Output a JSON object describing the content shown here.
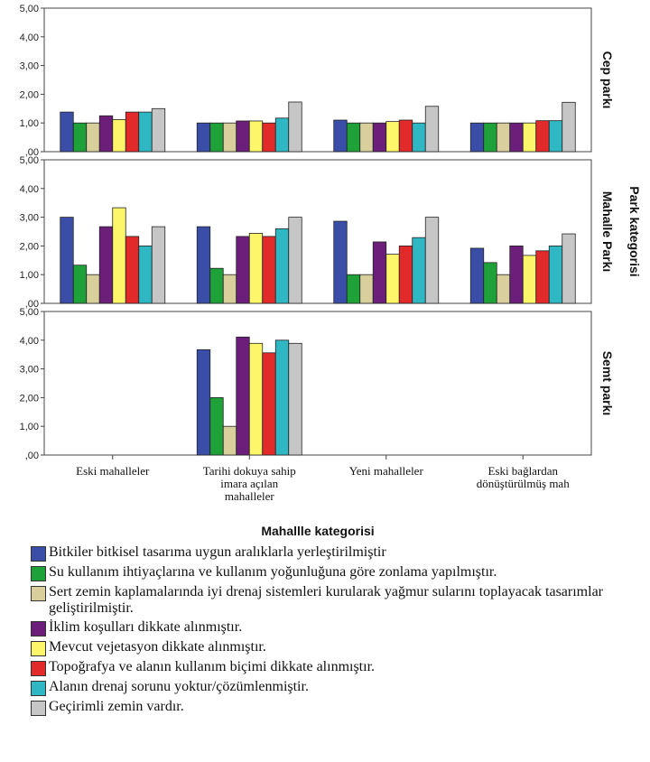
{
  "chart_data": {
    "type": "bar",
    "xlabel": "Mahallle kategorisi",
    "facet_label": "Park kategorisi",
    "categories": [
      [
        "Eski mahalleler"
      ],
      [
        "Tarihi dokuya sahip",
        "imara açılan",
        "mahalleler"
      ],
      [
        "Yeni mahalleler"
      ],
      [
        "Eski bağlardan",
        "dönüştürülmüş mah"
      ]
    ],
    "ylim": [
      0,
      5
    ],
    "yticks": [
      "5,00",
      "4,00",
      "3,00",
      "2,00",
      "1,00",
      ",00"
    ],
    "panels": [
      {
        "name": "Cep parkı",
        "values": [
          [
            1.38,
            1.0,
            1.0,
            1.25,
            1.12,
            1.38,
            1.38,
            1.5
          ],
          [
            1.0,
            1.0,
            1.0,
            1.07,
            1.07,
            1.0,
            1.17,
            1.73
          ],
          [
            1.1,
            1.0,
            1.0,
            1.0,
            1.05,
            1.1,
            1.0,
            1.58
          ],
          [
            1.0,
            1.0,
            1.0,
            1.0,
            1.0,
            1.08,
            1.08,
            1.72
          ]
        ]
      },
      {
        "name": "Mahalle Parkı",
        "values": [
          [
            3.0,
            1.33,
            1.0,
            2.67,
            3.33,
            2.33,
            2.0,
            2.67
          ],
          [
            2.67,
            1.22,
            1.0,
            2.33,
            2.44,
            2.33,
            2.6,
            3.0
          ],
          [
            2.86,
            1.0,
            1.0,
            2.14,
            1.71,
            2.0,
            2.29,
            3.0
          ],
          [
            1.92,
            1.42,
            1.0,
            2.0,
            1.67,
            1.83,
            2.0,
            2.42
          ]
        ]
      },
      {
        "name": "Semt parkı",
        "values": [
          null,
          [
            3.67,
            2.0,
            1.0,
            4.11,
            3.89,
            3.56,
            4.0,
            3.89
          ],
          null,
          null
        ]
      }
    ],
    "series": [
      {
        "name": "Bitkiler bitkisel tasarıma uygun aralıklarla yerleştirilmiştir",
        "color": "#3a4ea8"
      },
      {
        "name": "Su kullanım ihtiyaçlarına ve kullanım yoğunluğuna göre  zonlama yapılmıştır.",
        "color": "#1fa13a"
      },
      {
        "name": "Sert zemin kaplamalarında iyi drenaj sistemleri kurularak yağmur sularını toplayacak tasarımlar geliştirilmiştir.",
        "color": "#d9cf9c"
      },
      {
        "name": "İklim koşulları dikkate alınmıştır.",
        "color": "#6b1f7a"
      },
      {
        "name": "Mevcut vejetasyon dikkate alınmıştır.",
        "color": "#fdf56a"
      },
      {
        "name": "Topoğrafya ve alanın kullanım biçimi dikkate alınmıştır.",
        "color": "#e22a2a"
      },
      {
        "name": "Alanın drenaj sorunu yoktur/çözümlenmiştir.",
        "color": "#2fb7c4"
      },
      {
        "name": "Geçirimli zemin vardır.",
        "color": "#c6c6c6"
      }
    ],
    "grid": false,
    "legend_placement": "bottom"
  }
}
